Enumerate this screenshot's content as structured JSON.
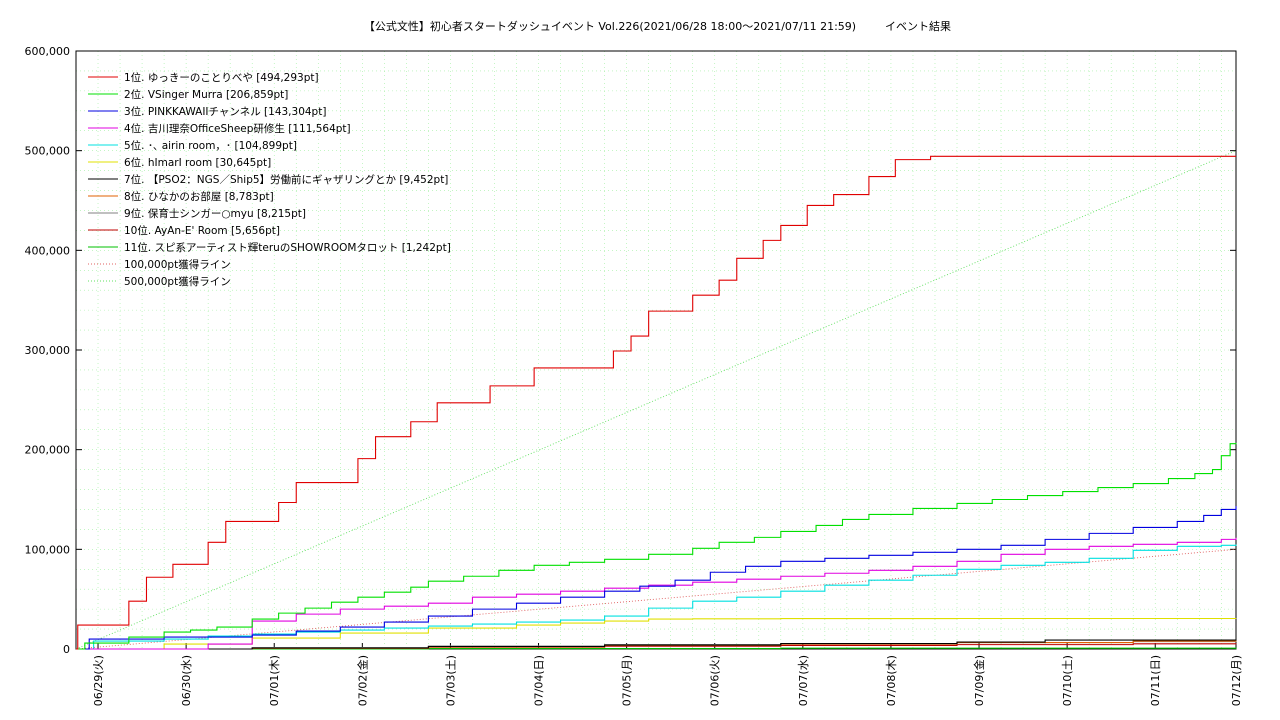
{
  "chart_data": {
    "type": "line",
    "title": "【公式文性】初心者スタートダッシュイベント Vol.226(2021/06/28 18:00〜2021/07/11 21:59)",
    "subtitle": "イベント結果",
    "xlabel": "",
    "ylabel": "",
    "ylim": [
      0,
      600000
    ],
    "xlim": [
      0,
      13.1667
    ],
    "grid": true,
    "legend_position": "top-left",
    "y_ticks": [
      {
        "value": 0,
        "label": "0"
      },
      {
        "value": 100000,
        "label": "100,000"
      },
      {
        "value": 200000,
        "label": "200,000"
      },
      {
        "value": 300000,
        "label": "300,000"
      },
      {
        "value": 400000,
        "label": "400,000"
      },
      {
        "value": 500000,
        "label": "500,000"
      },
      {
        "value": 600000,
        "label": "600,000"
      }
    ],
    "x_ticks": [
      {
        "value": 0.25,
        "label": "06/29(火)"
      },
      {
        "value": 1.25,
        "label": "06/30(水)"
      },
      {
        "value": 2.25,
        "label": "07/01(木)"
      },
      {
        "value": 3.25,
        "label": "07/02(金)"
      },
      {
        "value": 4.25,
        "label": "07/03(土)"
      },
      {
        "value": 5.25,
        "label": "07/04(日)"
      },
      {
        "value": 6.25,
        "label": "07/05(月)"
      },
      {
        "value": 7.25,
        "label": "07/06(火)"
      },
      {
        "value": 8.25,
        "label": "07/07(水)"
      },
      {
        "value": 9.25,
        "label": "07/08(木)"
      },
      {
        "value": 10.25,
        "label": "07/09(金)"
      },
      {
        "value": 11.25,
        "label": "07/10(土)"
      },
      {
        "value": 12.25,
        "label": "07/11(日)"
      },
      {
        "value": 13.25,
        "label": "07/12(月)"
      }
    ],
    "series": [
      {
        "name": "1位. ゆっきーのことりべや [494,293pt]",
        "color": "#e00000",
        "style": "solid",
        "x": [
          0,
          0.02,
          0.25,
          0.6,
          0.8,
          1.1,
          1.5,
          1.7,
          1.9,
          2.3,
          2.5,
          2.7,
          3.2,
          3.4,
          3.5,
          3.8,
          4.1,
          4.3,
          4.7,
          4.9,
          5.2,
          5.5,
          6.1,
          6.3,
          6.5,
          7.0,
          7.3,
          7.5,
          7.8,
          8.0,
          8.3,
          8.6,
          9.0,
          9.3,
          9.7,
          9.9,
          10.0,
          13.1667
        ],
        "y": [
          0,
          24000,
          24000,
          48000,
          72000,
          85000,
          107000,
          128000,
          128000,
          147000,
          167000,
          167000,
          191000,
          213000,
          213000,
          228000,
          247000,
          247000,
          264000,
          264000,
          282000,
          282000,
          299000,
          314000,
          339000,
          355000,
          370000,
          392000,
          410000,
          425000,
          445000,
          456000,
          474000,
          491000,
          494293,
          494293,
          494293,
          494293
        ]
      },
      {
        "name": "2位. VSinger Murra [206,859pt]",
        "color": "#00e000",
        "style": "solid",
        "x": [
          0,
          0.1,
          0.6,
          1.0,
          1.3,
          1.6,
          2.0,
          2.3,
          2.6,
          2.9,
          3.2,
          3.5,
          3.8,
          4.0,
          4.4,
          4.8,
          5.2,
          5.6,
          6.0,
          6.5,
          7.0,
          7.3,
          7.7,
          8.0,
          8.4,
          8.7,
          9.0,
          9.5,
          10.0,
          10.4,
          10.8,
          11.2,
          11.6,
          12.0,
          12.4,
          12.7,
          12.9,
          13.0,
          13.1,
          13.1667
        ],
        "y": [
          0,
          6000,
          12000,
          17000,
          19000,
          22000,
          30000,
          36000,
          41000,
          47000,
          52000,
          57000,
          62000,
          68000,
          73000,
          79000,
          84000,
          87000,
          90000,
          95000,
          101000,
          107000,
          112000,
          118000,
          124000,
          130000,
          135000,
          141000,
          146000,
          150000,
          154000,
          158000,
          162000,
          166000,
          171000,
          176000,
          180000,
          194000,
          206000,
          206859
        ]
      },
      {
        "name": "3位. PINKKAWAIIチャンネル [143,304pt]",
        "color": "#0000e0",
        "style": "solid",
        "x": [
          0,
          0.15,
          1.0,
          2.0,
          2.5,
          3.0,
          3.5,
          4.0,
          4.5,
          5.0,
          5.5,
          6.0,
          6.4,
          6.8,
          7.2,
          7.6,
          8.0,
          8.5,
          9.0,
          9.5,
          10.0,
          10.5,
          11.0,
          11.5,
          12.0,
          12.5,
          12.8,
          13.0,
          13.1667
        ],
        "y": [
          0,
          10000,
          12000,
          14000,
          18000,
          22000,
          27000,
          33000,
          40000,
          46000,
          52000,
          58000,
          63000,
          69000,
          77000,
          83000,
          88000,
          91000,
          94000,
          97000,
          100000,
          104000,
          110000,
          116000,
          122000,
          128000,
          134000,
          140000,
          143304
        ]
      },
      {
        "name": "4位. 吉川理奈OfficeSheep研修生 [111,564pt]",
        "color": "#e000e0",
        "style": "solid",
        "x": [
          0,
          1.5,
          2.0,
          2.5,
          3.0,
          3.5,
          4.0,
          4.5,
          5.0,
          5.5,
          6.0,
          6.5,
          7.0,
          7.5,
          8.0,
          8.5,
          9.0,
          9.5,
          10.0,
          10.5,
          11.0,
          11.5,
          12.0,
          12.5,
          13.0,
          13.1667
        ],
        "y": [
          0,
          5000,
          28000,
          35000,
          40000,
          43000,
          46000,
          52000,
          55000,
          58000,
          61000,
          64000,
          67000,
          70000,
          73000,
          76000,
          79000,
          83000,
          88000,
          95000,
          100000,
          103000,
          105000,
          107000,
          110000,
          111564
        ]
      },
      {
        "name": "5位. ･､ airin room，･ [104,899pt]",
        "color": "#00e0e0",
        "style": "solid",
        "x": [
          0,
          0.2,
          1.0,
          1.5,
          2.0,
          2.5,
          3.0,
          3.5,
          4.0,
          4.5,
          5.0,
          5.5,
          6.0,
          6.5,
          7.0,
          7.5,
          8.0,
          8.5,
          9.0,
          9.5,
          10.0,
          10.5,
          11.0,
          11.5,
          12.0,
          12.5,
          13.0,
          13.1667
        ],
        "y": [
          0,
          8000,
          10000,
          13000,
          15000,
          17000,
          19000,
          21000,
          23000,
          25000,
          27000,
          29000,
          33000,
          41000,
          48000,
          52000,
          58000,
          64000,
          69000,
          74000,
          80000,
          84000,
          87000,
          91000,
          99000,
          103000,
          104000,
          104899
        ]
      },
      {
        "name": "6位. hImarI room [30,645pt]",
        "color": "#e0e000",
        "style": "solid",
        "x": [
          0,
          1.0,
          2.0,
          3.0,
          4.0,
          5.0,
          5.5,
          6.0,
          6.5,
          7.0,
          8.0,
          10.0,
          13.1667
        ],
        "y": [
          0,
          5000,
          11000,
          16000,
          21000,
          24000,
          26000,
          28000,
          30000,
          30300,
          30500,
          30600,
          30645
        ]
      },
      {
        "name": "7位. 【PSO2：NGS／Ship5】労働前にギャザリングとか [9,452pt]",
        "color": "#000000",
        "style": "solid",
        "x": [
          0,
          2.0,
          4.0,
          6.0,
          8.0,
          10.0,
          11.0,
          13.1667
        ],
        "y": [
          0,
          1000,
          2500,
          4000,
          5500,
          7000,
          9000,
          9452
        ]
      },
      {
        "name": "8位. ひなかのお部屋 [8,783pt]",
        "color": "#e06000",
        "style": "solid",
        "x": [
          0,
          2.0,
          4.0,
          6.0,
          8.0,
          10.0,
          12.0,
          13.1667
        ],
        "y": [
          0,
          800,
          2000,
          3500,
          5000,
          6500,
          8000,
          8783
        ]
      },
      {
        "name": "9位. 保育士シンガー○myu [8,215pt]",
        "color": "#808080",
        "style": "solid",
        "x": [
          0,
          2.0,
          4.0,
          6.0,
          8.0,
          10.0,
          12.0,
          13.1667
        ],
        "y": [
          0,
          1500,
          3000,
          4500,
          5500,
          6500,
          7500,
          8215
        ]
      },
      {
        "name": "10位. AyAn-E' Room [5,656pt]",
        "color": "#c00000",
        "style": "solid",
        "x": [
          0,
          2.0,
          4.0,
          6.0,
          8.0,
          10.0,
          12.0,
          13.1667
        ],
        "y": [
          0,
          800,
          1800,
          2800,
          3600,
          4400,
          5200,
          5656
        ]
      },
      {
        "name": "11位. スピ系アーティスト輝teruのSHOWROOMタロット [1,242pt]",
        "color": "#00c000",
        "style": "solid",
        "x": [
          0,
          4.0,
          8.0,
          13.1667
        ],
        "y": [
          0,
          400,
          800,
          1242
        ]
      },
      {
        "name": "100,000pt獲得ライン",
        "color": "#e06060",
        "style": "dotted",
        "x": [
          0,
          13.1667
        ],
        "y": [
          0,
          100000
        ]
      },
      {
        "name": "500,000pt獲得ライン",
        "color": "#60e060",
        "style": "dotted",
        "x": [
          0,
          13.1667
        ],
        "y": [
          0,
          500000
        ]
      }
    ]
  }
}
